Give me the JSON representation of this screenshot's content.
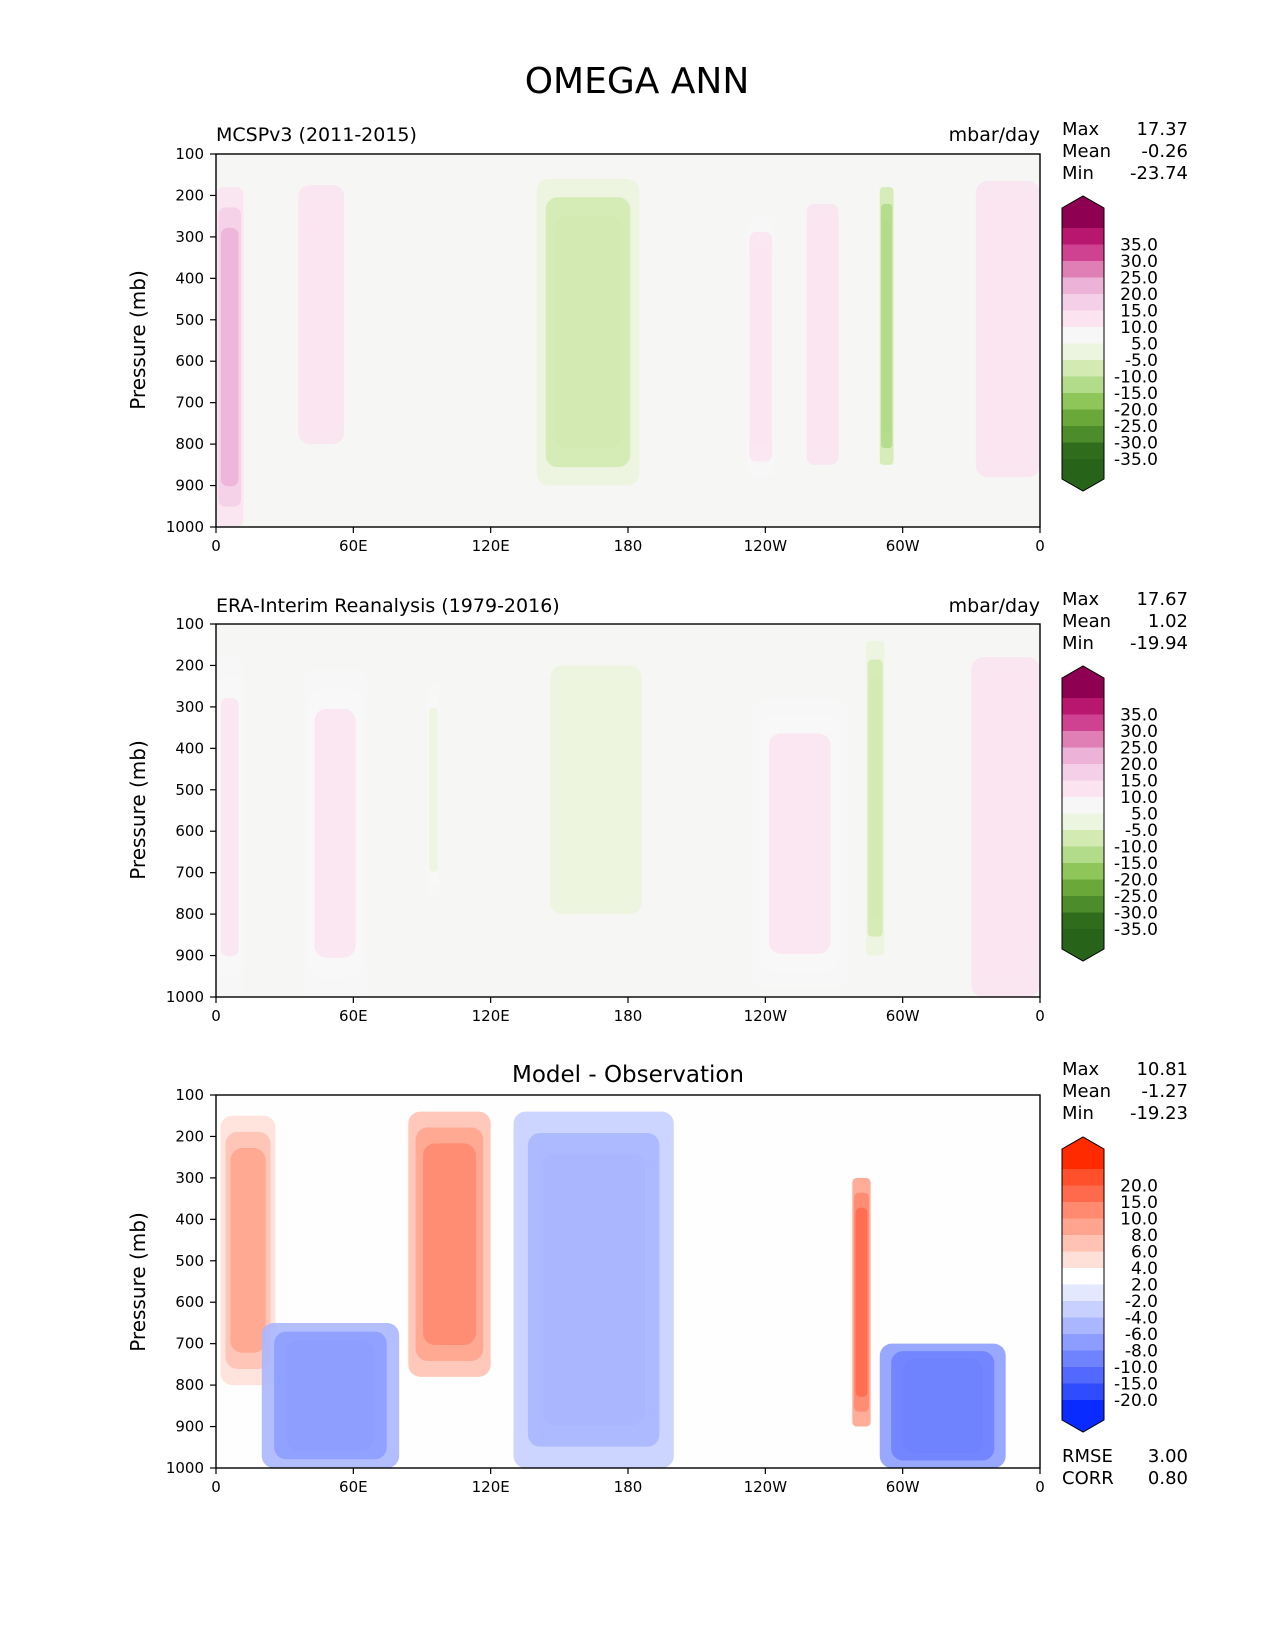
{
  "title": "OMEGA ANN",
  "chart_data": [
    {
      "type": "heatmap",
      "panel": "model",
      "title": "MCSPv3 (2011-2015)",
      "units": "mbar/day",
      "ylabel": "Pressure (mb)",
      "y_ticks": [
        "100",
        "200",
        "300",
        "400",
        "500",
        "600",
        "700",
        "800",
        "900",
        "1000"
      ],
      "x_ticks": [
        "0",
        "60E",
        "120E",
        "180",
        "120W",
        "60W",
        "0"
      ],
      "xlim": [
        0,
        360
      ],
      "ylim": [
        1000,
        100
      ],
      "stats": {
        "Max": "17.37",
        "Mean": "-0.26",
        "Min": "-23.74"
      },
      "colorbar_levels": [
        "35.0",
        "30.0",
        "25.0",
        "20.0",
        "15.0",
        "10.0",
        "5.0",
        "-5.0",
        "-10.0",
        "-15.0",
        "-20.0",
        "-25.0",
        "-30.0",
        "-35.0"
      ],
      "colorbar_colors": [
        "#8e0152",
        "#b8176f",
        "#cf4191",
        "#e07fb6",
        "#edb2d8",
        "#f5cfe7",
        "#fbe4f0",
        "#f7f7f7",
        "#ecf5df",
        "#d3ebb3",
        "#b2db8a",
        "#8ec65a",
        "#6aa83a",
        "#4d8c2a",
        "#2f6d1d",
        "#276419"
      ],
      "features": [
        {
          "sign": "descent",
          "lon": [
            0,
            12
          ],
          "p": [
            180,
            1000
          ],
          "peak": 15
        },
        {
          "sign": "descent",
          "lon": [
            36,
            56
          ],
          "p": [
            175,
            800
          ],
          "peak": 8
        },
        {
          "sign": "ascent",
          "lon": [
            140,
            185
          ],
          "p": [
            160,
            900
          ],
          "peak": -15
        },
        {
          "sign": "descent",
          "lon": [
            232,
            244
          ],
          "p": [
            250,
            880
          ],
          "peak": 7
        },
        {
          "sign": "descent",
          "lon": [
            258,
            272
          ],
          "p": [
            220,
            850
          ],
          "peak": 8
        },
        {
          "sign": "ascent",
          "lon": [
            290,
            296
          ],
          "p": [
            180,
            850
          ],
          "peak": -20
        },
        {
          "sign": "descent",
          "lon": [
            332,
            360
          ],
          "p": [
            165,
            880
          ],
          "peak": 8
        }
      ]
    },
    {
      "type": "heatmap",
      "panel": "observation",
      "title": "ERA-Interim Reanalysis (1979-2016)",
      "units": "mbar/day",
      "ylabel": "Pressure (mb)",
      "y_ticks": [
        "100",
        "200",
        "300",
        "400",
        "500",
        "600",
        "700",
        "800",
        "900",
        "1000"
      ],
      "x_ticks": [
        "0",
        "60E",
        "120E",
        "180",
        "120W",
        "60W",
        "0"
      ],
      "xlim": [
        0,
        360
      ],
      "ylim": [
        1000,
        100
      ],
      "stats": {
        "Max": "17.67",
        "Mean": "1.02",
        "Min": "-19.94"
      },
      "colorbar_levels": [
        "35.0",
        "30.0",
        "25.0",
        "20.0",
        "15.0",
        "10.0",
        "5.0",
        "-5.0",
        "-10.0",
        "-15.0",
        "-20.0",
        "-25.0",
        "-30.0",
        "-35.0"
      ],
      "colorbar_colors": [
        "#8e0152",
        "#b8176f",
        "#cf4191",
        "#e07fb6",
        "#edb2d8",
        "#f5cfe7",
        "#fbe4f0",
        "#f7f7f7",
        "#ecf5df",
        "#d3ebb3",
        "#b2db8a",
        "#8ec65a",
        "#6aa83a",
        "#4d8c2a",
        "#2f6d1d",
        "#276419"
      ],
      "features": [
        {
          "sign": "descent",
          "lon": [
            0,
            12
          ],
          "p": [
            180,
            1000
          ],
          "peak": 6
        },
        {
          "sign": "descent",
          "lon": [
            38,
            66
          ],
          "p": [
            210,
            1000
          ],
          "peak": 6
        },
        {
          "sign": "ascent",
          "lon": [
            92,
            98
          ],
          "p": [
            240,
            760
          ],
          "peak": -6
        },
        {
          "sign": "ascent",
          "lon": [
            146,
            186
          ],
          "p": [
            200,
            800
          ],
          "peak": -8
        },
        {
          "sign": "descent",
          "lon": [
            234,
            276
          ],
          "p": [
            280,
            980
          ],
          "peak": 6
        },
        {
          "sign": "ascent",
          "lon": [
            284,
            292
          ],
          "p": [
            140,
            900
          ],
          "peak": -15
        },
        {
          "sign": "descent",
          "lon": [
            330,
            360
          ],
          "p": [
            180,
            1000
          ],
          "peak": 8
        }
      ]
    },
    {
      "type": "heatmap",
      "panel": "difference",
      "title": "Model - Observation",
      "ylabel": "Pressure (mb)",
      "y_ticks": [
        "100",
        "200",
        "300",
        "400",
        "500",
        "600",
        "700",
        "800",
        "900",
        "1000"
      ],
      "x_ticks": [
        "0",
        "60E",
        "120E",
        "180",
        "120W",
        "60W",
        "0"
      ],
      "xlim": [
        0,
        360
      ],
      "ylim": [
        1000,
        100
      ],
      "stats": {
        "Max": "10.81",
        "Mean": "-1.27",
        "Min": "-19.23"
      },
      "metrics": {
        "RMSE": "3.00",
        "CORR": "0.80"
      },
      "colorbar_levels": [
        "20.0",
        "15.0",
        "10.0",
        "8.0",
        "6.0",
        "4.0",
        "2.0",
        "-2.0",
        "-4.0",
        "-6.0",
        "-8.0",
        "-10.0",
        "-15.0",
        "-20.0"
      ],
      "colorbar_colors": [
        "#ff2a00",
        "#ff4f2b",
        "#ff6a4d",
        "#ff8a70",
        "#ffa48e",
        "#ffc2b3",
        "#ffe0d8",
        "#ffffff",
        "#e3e8ff",
        "#c7d0ff",
        "#aab7ff",
        "#8d9dff",
        "#7083ff",
        "#5268ff",
        "#2f4dff",
        "#0a2bff"
      ],
      "features": [
        {
          "sign": "positive",
          "lon": [
            2,
            26
          ],
          "p": [
            150,
            800
          ],
          "peak": 6
        },
        {
          "sign": "negative",
          "lon": [
            20,
            80
          ],
          "p": [
            650,
            1000
          ],
          "peak": -10
        },
        {
          "sign": "positive",
          "lon": [
            84,
            120
          ],
          "p": [
            140,
            780
          ],
          "peak": 8
        },
        {
          "sign": "negative",
          "lon": [
            130,
            200
          ],
          "p": [
            140,
            1000
          ],
          "peak": -8
        },
        {
          "sign": "positive",
          "lon": [
            278,
            286
          ],
          "p": [
            300,
            900
          ],
          "peak": 10
        },
        {
          "sign": "negative",
          "lon": [
            290,
            345
          ],
          "p": [
            700,
            1000
          ],
          "peak": -15
        }
      ]
    }
  ]
}
